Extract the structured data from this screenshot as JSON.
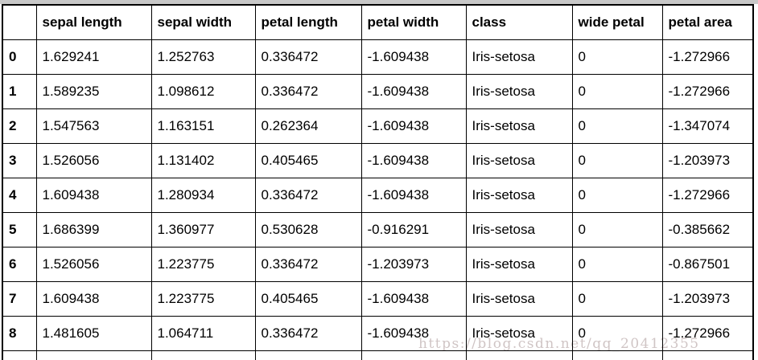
{
  "colors": {
    "background": "#ffffff",
    "table_border": "#000000",
    "top_strip": "#c8c8c8",
    "watermark_text_color": "#c4b6b6"
  },
  "watermark": {
    "text": "https://blog.csdn.net/qq_20412355"
  },
  "chart_data": {
    "type": "table",
    "title": "",
    "columns": [
      "",
      "sepal length",
      "sepal width",
      "petal length",
      "petal width",
      "class",
      "wide petal",
      "petal area"
    ],
    "index_label": "",
    "rows": [
      [
        "0",
        "1.629241",
        "1.252763",
        "0.336472",
        "-1.609438",
        "Iris-setosa",
        "0",
        "-1.272966"
      ],
      [
        "1",
        "1.589235",
        "1.098612",
        "0.336472",
        "-1.609438",
        "Iris-setosa",
        "0",
        "-1.272966"
      ],
      [
        "2",
        "1.547563",
        "1.163151",
        "0.262364",
        "-1.609438",
        "Iris-setosa",
        "0",
        "-1.347074"
      ],
      [
        "3",
        "1.526056",
        "1.131402",
        "0.405465",
        "-1.609438",
        "Iris-setosa",
        "0",
        "-1.203973"
      ],
      [
        "4",
        "1.609438",
        "1.280934",
        "0.336472",
        "-1.609438",
        "Iris-setosa",
        "0",
        "-1.272966"
      ],
      [
        "5",
        "1.686399",
        "1.360977",
        "0.530628",
        "-0.916291",
        "Iris-setosa",
        "0",
        "-0.385662"
      ],
      [
        "6",
        "1.526056",
        "1.223775",
        "0.336472",
        "-1.203973",
        "Iris-setosa",
        "0",
        "-0.867501"
      ],
      [
        "7",
        "1.609438",
        "1.223775",
        "0.405465",
        "-1.609438",
        "Iris-setosa",
        "0",
        "-1.203973"
      ],
      [
        "8",
        "1.481605",
        "1.064711",
        "0.336472",
        "-1.609438",
        "Iris-setosa",
        "0",
        "-1.272966"
      ]
    ],
    "notes": {
      "partial_row_clipped_at_bottom": true,
      "grid": "on",
      "header_style": "bold",
      "index_style": "bold"
    }
  }
}
